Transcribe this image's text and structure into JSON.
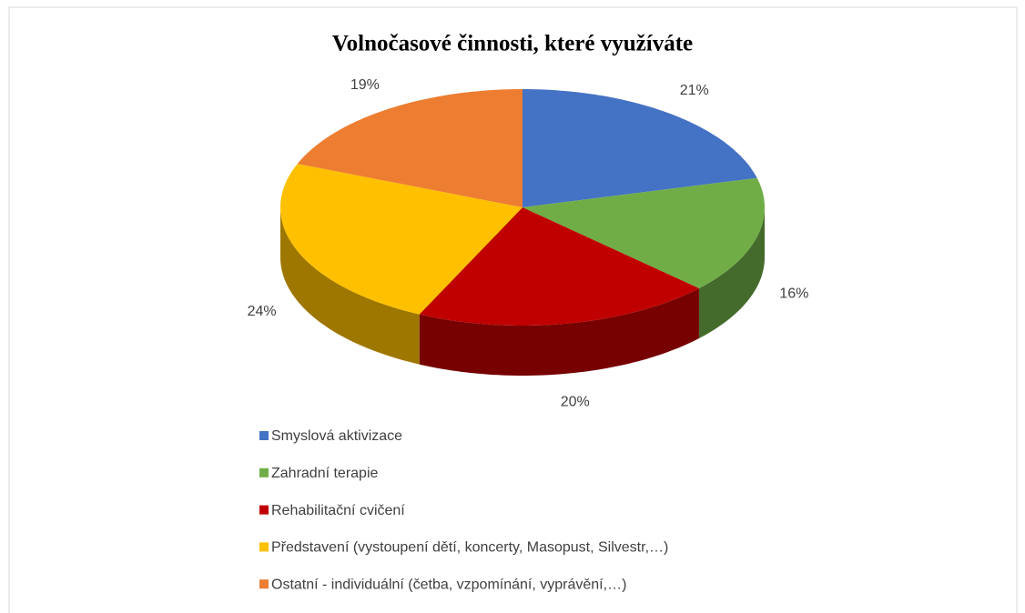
{
  "chart_data": {
    "type": "pie",
    "title": "Volnočasové činnosti, které využíváte",
    "categories": [
      "Smyslová aktivizace",
      "Zahradní terapie",
      "Rehabilitační cvičení",
      "Představení (vystoupení dětí, koncerty, Masopust, Silvestr,…)",
      "Ostatní - individuální (četba, vzpomínání, vyprávění,…)"
    ],
    "values": [
      21,
      16,
      20,
      24,
      19
    ],
    "value_labels": [
      "21%",
      "16%",
      "20%",
      "24%",
      "19%"
    ],
    "colors": [
      "#4472c4",
      "#70ad47",
      "#c00000",
      "#ffc000",
      "#ed7d31"
    ],
    "legend": "bottom"
  }
}
